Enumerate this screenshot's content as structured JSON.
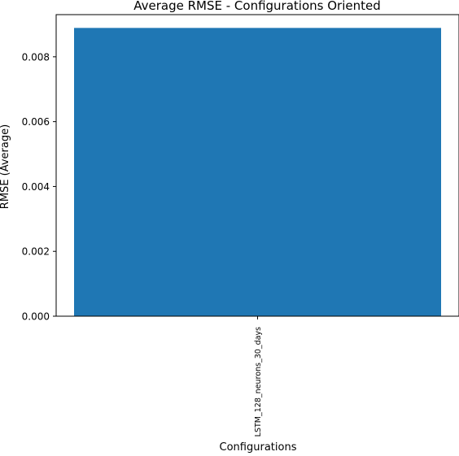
{
  "chart_data": {
    "type": "bar",
    "title": "Average RMSE - Configurations Oriented",
    "xlabel": "Configurations",
    "ylabel": "RMSE (Average)",
    "categories": [
      "LSTM_128_neurons_30_days"
    ],
    "values": [
      0.00889
    ],
    "ylim": [
      0,
      0.0093
    ],
    "yticks": [
      0.0,
      0.002,
      0.004,
      0.006,
      0.008
    ],
    "ytick_labels": [
      "0.000",
      "0.002",
      "0.004",
      "0.006",
      "0.008"
    ],
    "bar_color": "#1f77b4",
    "grid": false,
    "legend": "none"
  }
}
